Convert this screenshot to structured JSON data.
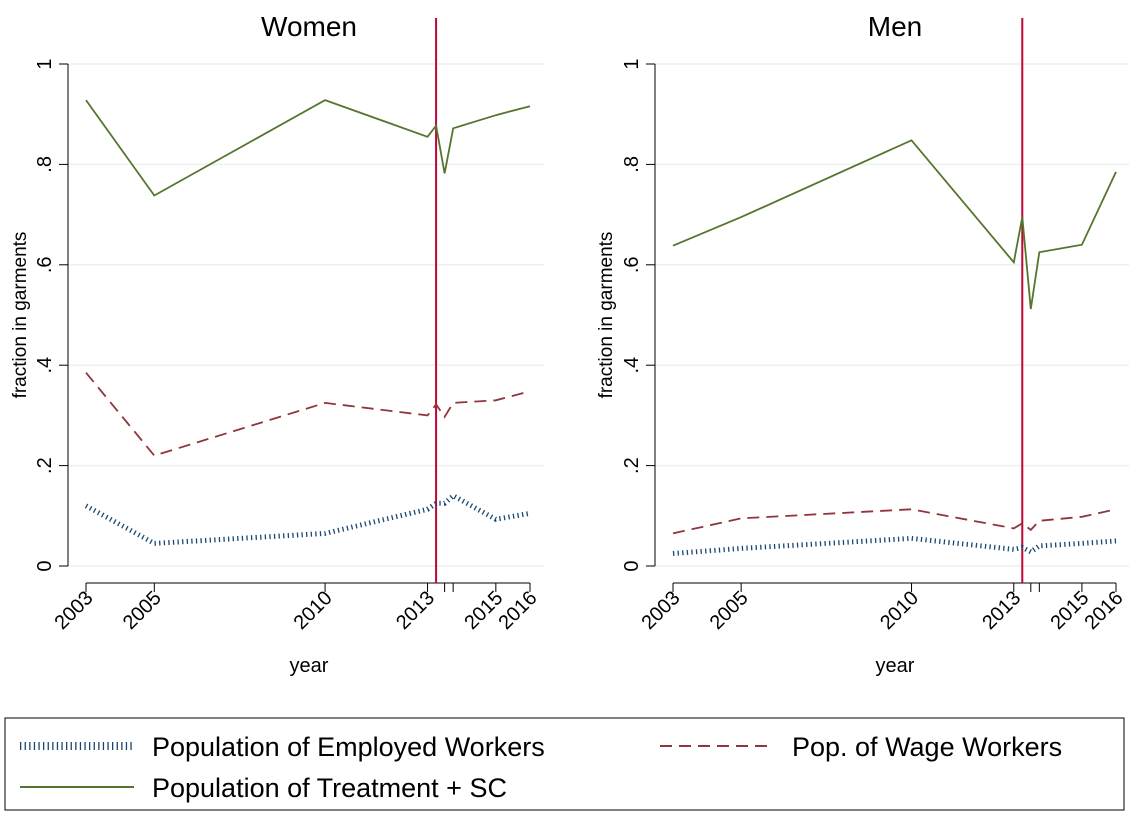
{
  "chart_data": [
    {
      "type": "line",
      "title": "Women",
      "xlabel": "year",
      "ylabel": "fraction in garments",
      "xlim": [
        2003,
        2016
      ],
      "ylim": [
        0,
        1
      ],
      "x_ticks": [
        "2003",
        "2005",
        "2010",
        "2013",
        "2015",
        "2016"
      ],
      "y_ticks": [
        "0",
        ".2",
        ".4",
        ".6",
        ".8",
        "1"
      ],
      "y_tick_values": [
        0,
        0.2,
        0.4,
        0.6,
        0.8,
        1
      ],
      "vline": 2013.25,
      "grid": true,
      "series": [
        {
          "name": "Population of Employed Workers",
          "color": "#1a476f",
          "style": "dotted",
          "x": [
            2003,
            2005,
            2010,
            2013,
            2013.25,
            2013.5,
            2013.75,
            2015,
            2016
          ],
          "y": [
            0.12,
            0.045,
            0.065,
            0.113,
            0.125,
            0.125,
            0.14,
            0.093,
            0.105
          ]
        },
        {
          "name": "Pop. of Wage Workers",
          "color": "#90353b",
          "style": "dashed",
          "x": [
            2003,
            2005,
            2010,
            2013,
            2013.25,
            2013.5,
            2013.75,
            2015,
            2016
          ],
          "y": [
            0.385,
            0.22,
            0.325,
            0.3,
            0.322,
            0.297,
            0.325,
            0.33,
            0.348
          ]
        },
        {
          "name": "Population of Treatment + SC",
          "color": "#55752f",
          "style": "solid",
          "x": [
            2003,
            2005,
            2010,
            2013,
            2013.25,
            2013.5,
            2013.75,
            2015,
            2016
          ],
          "y": [
            0.928,
            0.738,
            0.928,
            0.855,
            0.877,
            0.782,
            0.872,
            0.898,
            0.916
          ]
        }
      ]
    },
    {
      "type": "line",
      "title": "Men",
      "xlabel": "year",
      "ylabel": "fraction in garments",
      "xlim": [
        2003,
        2016
      ],
      "ylim": [
        0,
        1
      ],
      "x_ticks": [
        "2003",
        "2005",
        "2010",
        "2013",
        "2015",
        "2016"
      ],
      "y_ticks": [
        "0",
        ".2",
        ".4",
        ".6",
        ".8",
        "1"
      ],
      "y_tick_values": [
        0,
        0.2,
        0.4,
        0.6,
        0.8,
        1
      ],
      "vline": 2013.25,
      "grid": true,
      "series": [
        {
          "name": "Population of Employed Workers",
          "color": "#1a476f",
          "style": "dotted",
          "x": [
            2003,
            2005,
            2010,
            2013,
            2013.25,
            2013.5,
            2013.75,
            2015,
            2016
          ],
          "y": [
            0.025,
            0.035,
            0.055,
            0.033,
            0.037,
            0.028,
            0.04,
            0.045,
            0.05
          ]
        },
        {
          "name": "Pop. of Wage Workers",
          "color": "#90353b",
          "style": "dashed",
          "x": [
            2003,
            2005,
            2010,
            2013,
            2013.25,
            2013.5,
            2013.75,
            2015,
            2016
          ],
          "y": [
            0.065,
            0.095,
            0.113,
            0.075,
            0.085,
            0.072,
            0.09,
            0.098,
            0.113
          ]
        },
        {
          "name": "Population of Treatment + SC",
          "color": "#55752f",
          "style": "solid",
          "x": [
            2003,
            2005,
            2010,
            2013,
            2013.25,
            2013.5,
            2013.75,
            2015,
            2016
          ],
          "y": [
            0.638,
            0.695,
            0.848,
            0.605,
            0.695,
            0.512,
            0.625,
            0.64,
            0.785
          ]
        }
      ]
    }
  ],
  "legend": {
    "placement": "bottom",
    "items": [
      {
        "label": "Population of Employed Workers",
        "color": "#1a476f",
        "style": "dotted"
      },
      {
        "label": "Pop. of Wage Workers",
        "color": "#90353b",
        "style": "dashed"
      },
      {
        "label": "Population of Treatment + SC",
        "color": "#55752f",
        "style": "solid"
      }
    ]
  },
  "colors": {
    "vline": "#c10534",
    "grid": "#eaf2f3"
  }
}
